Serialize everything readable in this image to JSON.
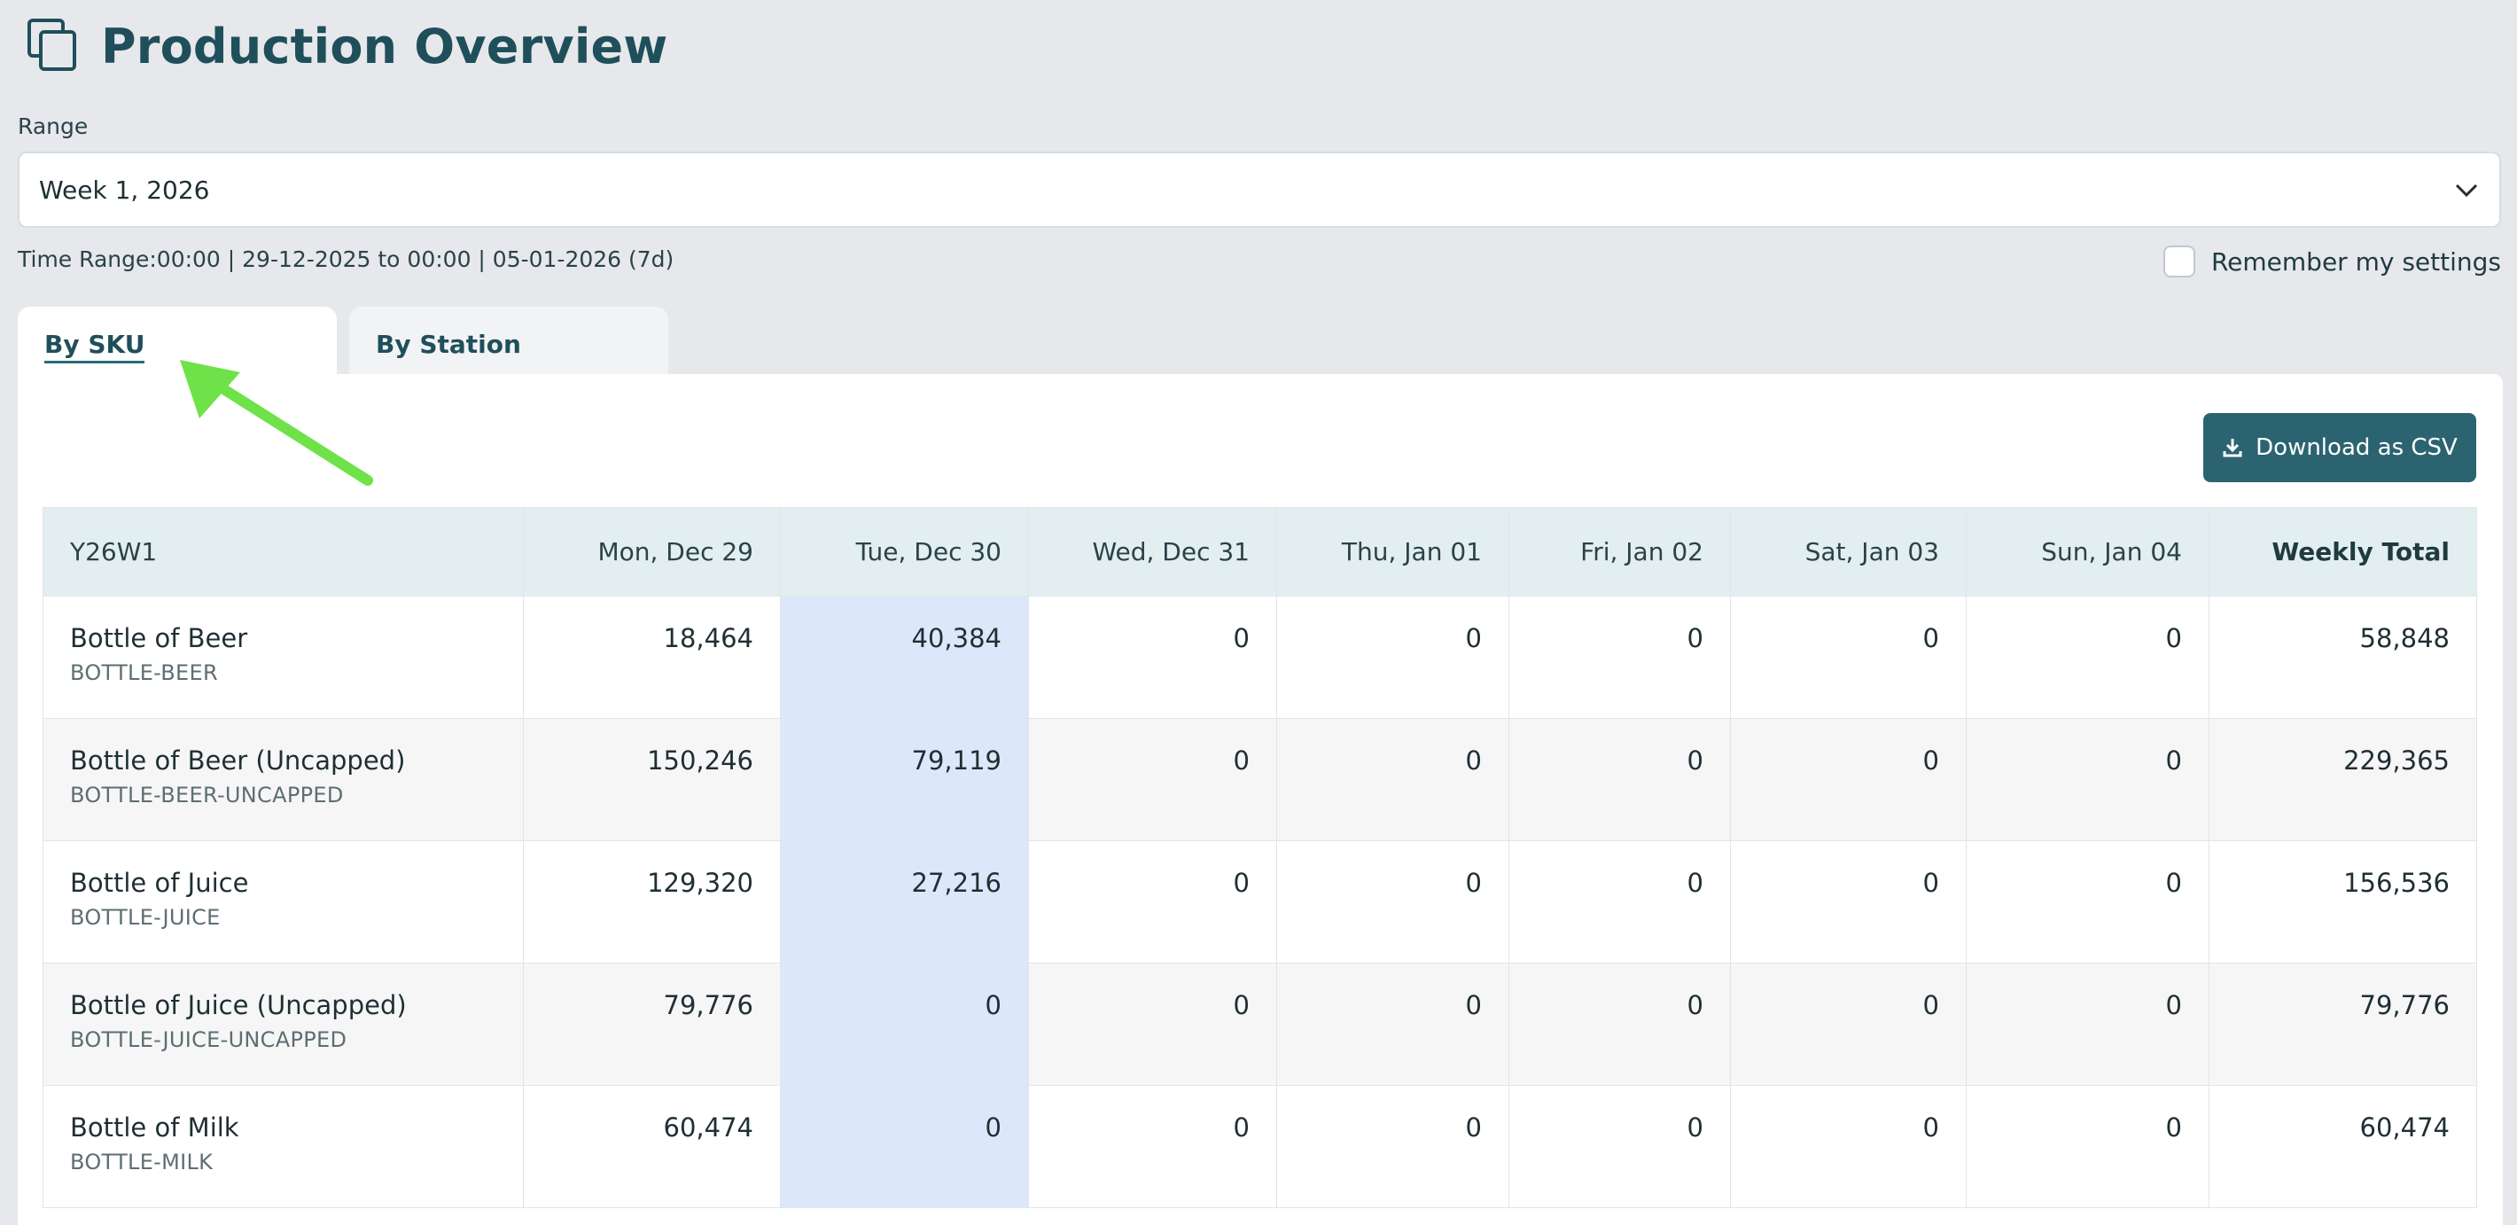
{
  "header": {
    "title": "Production Overview",
    "icon": "copy-icon"
  },
  "range": {
    "label": "Range",
    "value": "Week 1, 2026"
  },
  "time_range": "Time Range:00:00 | 29-12-2025 to 00:00 | 05-01-2026 (7d)",
  "remember": {
    "label": "Remember my settings",
    "checked": false
  },
  "tabs": [
    {
      "label": "By SKU",
      "active": true
    },
    {
      "label": "By Station",
      "active": false
    }
  ],
  "download_button": "Download as CSV",
  "table": {
    "columns": [
      "Y26W1",
      "Mon, Dec 29",
      "Tue, Dec 30",
      "Wed, Dec 31",
      "Thu, Jan 01",
      "Fri, Jan 02",
      "Sat, Jan 03",
      "Sun, Jan 04",
      "Weekly Total"
    ],
    "rows": [
      {
        "name": "Bottle of Beer",
        "code": "BOTTLE-BEER",
        "values": [
          "18,464",
          "40,384",
          "0",
          "0",
          "0",
          "0",
          "0",
          "58,848"
        ]
      },
      {
        "name": "Bottle of Beer (Uncapped)",
        "code": "BOTTLE-BEER-UNCAPPED",
        "values": [
          "150,246",
          "79,119",
          "0",
          "0",
          "0",
          "0",
          "0",
          "229,365"
        ]
      },
      {
        "name": "Bottle of Juice",
        "code": "BOTTLE-JUICE",
        "values": [
          "129,320",
          "27,216",
          "0",
          "0",
          "0",
          "0",
          "0",
          "156,536"
        ]
      },
      {
        "name": "Bottle of Juice (Uncapped)",
        "code": "BOTTLE-JUICE-UNCAPPED",
        "values": [
          "79,776",
          "0",
          "0",
          "0",
          "0",
          "0",
          "0",
          "79,776"
        ]
      },
      {
        "name": "Bottle of Milk",
        "code": "BOTTLE-MILK",
        "values": [
          "60,474",
          "0",
          "0",
          "0",
          "0",
          "0",
          "0",
          "60,474"
        ]
      }
    ]
  },
  "colors": {
    "accent": "#2b6470",
    "highlight_column": "#dce8fa",
    "annotation_arrow": "#6fe24a"
  }
}
